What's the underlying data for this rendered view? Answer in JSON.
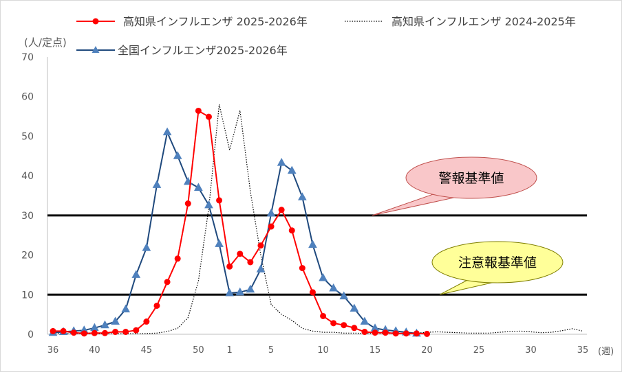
{
  "chart_data": {
    "type": "line",
    "y_unit_label": "(人/定点)",
    "x_unit_label": "(週)",
    "ylim": [
      0,
      70
    ],
    "yticks": [
      0,
      10,
      20,
      30,
      40,
      50,
      60,
      70
    ],
    "x_tick_labels": [
      "36",
      "40",
      "45",
      "50",
      "1",
      "5",
      "10",
      "15",
      "20",
      "25",
      "30",
      "35"
    ],
    "week_labels": [
      "36",
      "37",
      "38",
      "39",
      "40",
      "41",
      "42",
      "43",
      "44",
      "45",
      "46",
      "47",
      "48",
      "49",
      "50",
      "51",
      "52",
      "1",
      "2",
      "3",
      "4",
      "5",
      "6",
      "7",
      "8",
      "9",
      "10",
      "11",
      "12",
      "13",
      "14",
      "15",
      "16",
      "17",
      "18",
      "19",
      "20",
      "21",
      "22",
      "23",
      "24",
      "25",
      "26",
      "27",
      "28",
      "29",
      "30",
      "31",
      "32",
      "33",
      "34",
      "35"
    ],
    "grid": false,
    "legend_position": "top",
    "series": [
      {
        "name": "高知県インフルエンザ 2025-2026年",
        "color": "#ff0000",
        "marker": "circle",
        "line": "solid",
        "values": [
          0.8,
          0.8,
          0.4,
          0.2,
          0.3,
          0.3,
          0.6,
          0.6,
          1.0,
          3.2,
          7.2,
          13.2,
          19.1,
          33.0,
          56.4,
          54.9,
          33.8,
          17.1,
          20.3,
          18.2,
          22.4,
          27.2,
          31.4,
          26.2,
          16.7,
          10.6,
          4.6,
          2.8,
          2.3,
          1.6,
          0.6,
          0.4,
          0.4,
          0.2,
          0.2,
          0.2,
          0.1
        ]
      },
      {
        "name": "高知県インフルエンザ 2024-2025年",
        "color": "#000000",
        "marker": "none",
        "line": "dotted",
        "values": [
          0.3,
          0.2,
          0.1,
          0.1,
          0.1,
          0.1,
          0.1,
          0.1,
          0.1,
          0.2,
          0.3,
          0.7,
          1.5,
          4.2,
          13.5,
          32.0,
          58.0,
          46.5,
          56.5,
          36.0,
          20.0,
          7.5,
          5.0,
          3.5,
          1.5,
          0.8,
          0.5,
          0.5,
          0.3,
          0.3,
          0.2,
          0.2,
          0.2,
          0.2,
          0.2,
          0.3,
          0.5,
          0.6,
          0.5,
          0.4,
          0.3,
          0.3,
          0.3,
          0.5,
          0.7,
          0.8,
          0.6,
          0.4,
          0.5,
          0.9,
          1.4,
          0.8
        ]
      },
      {
        "name": "全国インフルエンザ2025-2026年",
        "color": "#1f497d",
        "marker": "triangle",
        "line": "solid",
        "values": [
          0.4,
          0.6,
          0.8,
          1.0,
          1.6,
          2.3,
          3.2,
          6.3,
          15.0,
          21.8,
          37.7,
          51.0,
          45.0,
          38.5,
          37.0,
          32.6,
          22.8,
          10.4,
          10.6,
          11.3,
          16.4,
          30.5,
          43.3,
          41.3,
          34.6,
          22.6,
          14.2,
          11.6,
          9.6,
          6.5,
          3.2,
          1.5,
          1.1,
          0.8,
          0.5,
          0.2
        ]
      }
    ],
    "reference_lines": [
      {
        "label": "警報基準値",
        "value": 30
      },
      {
        "label": "注意報基準値",
        "value": 10
      }
    ]
  }
}
